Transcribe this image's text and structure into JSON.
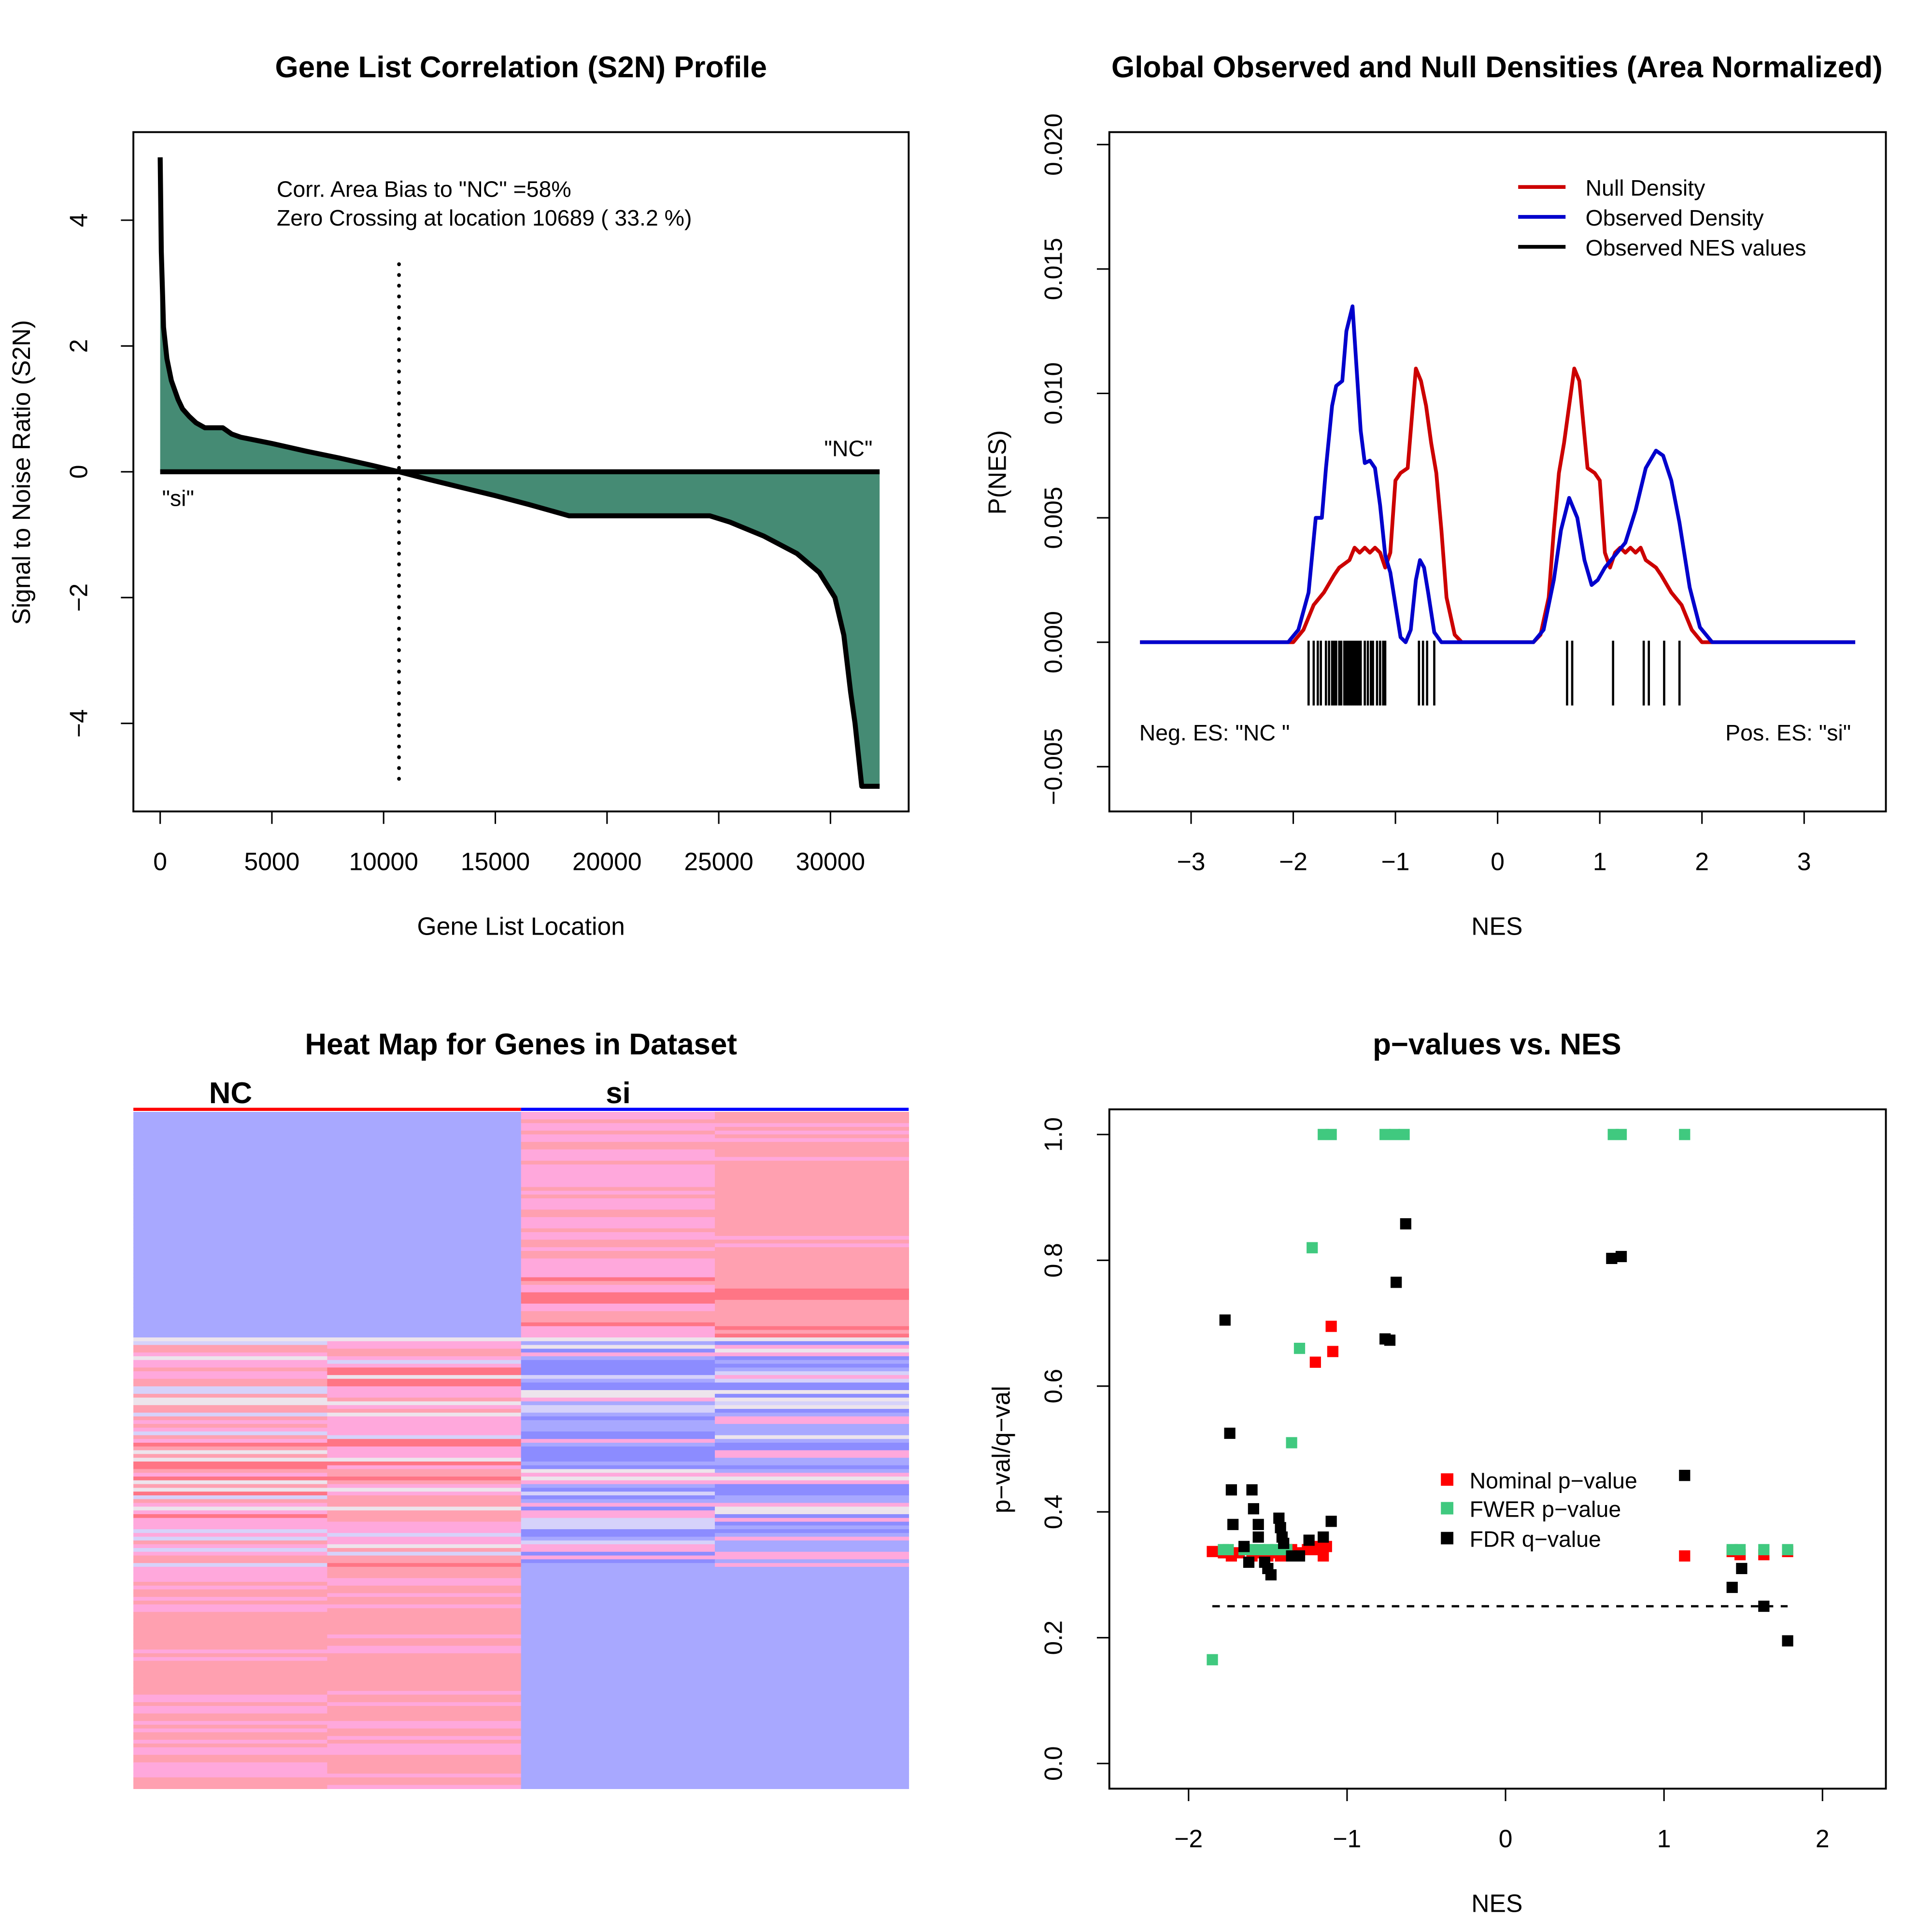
{
  "chart_data": [
    {
      "type": "area",
      "title": "Gene List Correlation (S2N) Profile",
      "xlabel": "Gene List Location",
      "ylabel": "Signal to Noise Ratio (S2N)",
      "xlim": [
        -1200,
        33500
      ],
      "ylim": [
        -5.4,
        5.4
      ],
      "xticks": [
        0,
        5000,
        10000,
        15000,
        20000,
        25000,
        30000
      ],
      "yticks": [
        -4,
        -2,
        0,
        2,
        4
      ],
      "fill_color": "#458b74",
      "x": [
        0,
        50,
        150,
        300,
        500,
        800,
        1000,
        1300,
        1600,
        2000,
        2800,
        3200,
        3600,
        5000,
        6500,
        8000,
        9500,
        10689,
        12000,
        13500,
        15000,
        16500,
        18300,
        24600,
        25500,
        27000,
        28500,
        29500,
        30200,
        30600,
        30900,
        31100,
        31400,
        32200
      ],
      "y": [
        5.0,
        3.5,
        2.3,
        1.8,
        1.45,
        1.15,
        1.0,
        0.88,
        0.78,
        0.7,
        0.7,
        0.6,
        0.55,
        0.45,
        0.33,
        0.22,
        0.1,
        0.0,
        -0.12,
        -0.25,
        -0.38,
        -0.52,
        -0.7,
        -0.7,
        -0.8,
        -1.02,
        -1.3,
        -1.6,
        -2.0,
        -2.6,
        -3.5,
        -4.0,
        -5.0,
        -5.0
      ],
      "zero_crossing": 10689,
      "annotations": [
        "Corr. Area Bias to \"NC\" =58%",
        "Zero Crossing at location  10689  ( 33.2  %)"
      ],
      "label_left": "\"si\"",
      "label_right": "\"NC\""
    },
    {
      "type": "line",
      "title": "Global Observed and Null Densities (Area Normalized)",
      "xlabel": "NES",
      "ylabel": "P(NES)",
      "xlim": [
        -3.8,
        3.8
      ],
      "ylim": [
        -0.0068,
        0.0205
      ],
      "xticks": [
        -3,
        -2,
        -1,
        0,
        1,
        2,
        3
      ],
      "yticks": [
        -0.005,
        0.0,
        0.005,
        0.01,
        0.015,
        0.02
      ],
      "ytick_labels": [
        "−0.005",
        "0.000",
        "0.005",
        "0.010",
        "0.015",
        "0.020"
      ],
      "xtick_labels": [
        "−3",
        "−2",
        "−1",
        "0",
        "1",
        "2",
        "3"
      ],
      "legend": {
        "placement": "top-right",
        "entries": [
          "Null Density",
          "Observed Density",
          "Observed NES values"
        ]
      },
      "series": [
        {
          "name": "Null Density",
          "color": "#cc0000",
          "x": [
            -3.5,
            -2.0,
            -1.9,
            -1.8,
            -1.7,
            -1.6,
            -1.55,
            -1.45,
            -1.4,
            -1.35,
            -1.3,
            -1.25,
            -1.2,
            -1.15,
            -1.1,
            -1.05,
            -1.0,
            -0.95,
            -0.88,
            -0.8,
            -0.75,
            -0.7,
            -0.65,
            -0.6,
            -0.55,
            -0.5,
            -0.42,
            -0.35,
            0.35,
            0.42,
            0.5,
            0.55,
            0.6,
            0.65,
            0.7,
            0.75,
            0.8,
            0.88,
            0.95,
            1.0,
            1.05,
            1.1,
            1.15,
            1.2,
            1.25,
            1.3,
            1.35,
            1.4,
            1.45,
            1.55,
            1.6,
            1.7,
            1.8,
            1.9,
            2.0,
            3.5
          ],
          "y": [
            0,
            0,
            0.0005,
            0.0015,
            0.002,
            0.0027,
            0.003,
            0.0033,
            0.0038,
            0.0036,
            0.0038,
            0.0036,
            0.0038,
            0.0036,
            0.003,
            0.0036,
            0.0065,
            0.0068,
            0.007,
            0.011,
            0.0105,
            0.0095,
            0.008,
            0.0068,
            0.0045,
            0.0018,
            0.0003,
            0,
            0,
            0.0003,
            0.0018,
            0.0045,
            0.0068,
            0.008,
            0.0095,
            0.011,
            0.0105,
            0.007,
            0.0068,
            0.0065,
            0.0036,
            0.003,
            0.0036,
            0.0038,
            0.0036,
            0.0038,
            0.0036,
            0.0038,
            0.0033,
            0.003,
            0.0027,
            0.002,
            0.0015,
            0.0005,
            0,
            0
          ]
        },
        {
          "name": "Observed Density",
          "color": "#0000cc",
          "x": [
            -3.5,
            -2.05,
            -1.95,
            -1.85,
            -1.78,
            -1.72,
            -1.68,
            -1.62,
            -1.58,
            -1.52,
            -1.48,
            -1.42,
            -1.38,
            -1.34,
            -1.3,
            -1.25,
            -1.2,
            -1.15,
            -1.1,
            -1.05,
            -1.0,
            -0.95,
            -0.9,
            -0.85,
            -0.8,
            -0.76,
            -0.72,
            -0.68,
            -0.62,
            -0.55,
            0.35,
            0.45,
            0.55,
            0.62,
            0.7,
            0.78,
            0.85,
            0.92,
            0.98,
            1.05,
            1.15,
            1.25,
            1.35,
            1.45,
            1.55,
            1.62,
            1.7,
            1.78,
            1.88,
            1.98,
            2.1,
            3.5
          ],
          "y": [
            0,
            0,
            0.0005,
            0.002,
            0.005,
            0.005,
            0.007,
            0.0095,
            0.0103,
            0.0105,
            0.0125,
            0.0135,
            0.011,
            0.0085,
            0.0072,
            0.0073,
            0.007,
            0.0055,
            0.0035,
            0.0028,
            0.0015,
            0.0002,
            0,
            0.0005,
            0.0025,
            0.0033,
            0.003,
            0.002,
            0.0004,
            0,
            0,
            0.0005,
            0.0025,
            0.0045,
            0.0058,
            0.005,
            0.0033,
            0.0023,
            0.0025,
            0.003,
            0.0035,
            0.004,
            0.0053,
            0.007,
            0.0077,
            0.0075,
            0.0065,
            0.0048,
            0.0022,
            0.0006,
            0,
            0
          ]
        }
      ],
      "rug_values": [
        -1.85,
        -1.8,
        -1.76,
        -1.73,
        -1.68,
        -1.65,
        -1.62,
        -1.6,
        -1.58,
        -1.55,
        -1.53,
        -1.5,
        -1.48,
        -1.46,
        -1.44,
        -1.42,
        -1.4,
        -1.38,
        -1.36,
        -1.34,
        -1.3,
        -1.27,
        -1.24,
        -1.22,
        -1.18,
        -1.15,
        -1.12,
        -1.1,
        -0.77,
        -0.73,
        -0.69,
        -0.62,
        0.68,
        0.73,
        1.13,
        1.43,
        1.48,
        1.63,
        1.78
      ],
      "neg_label": "Neg. ES: \"NC \"",
      "pos_label": "Pos. ES: \"si\""
    },
    {
      "type": "heatmap",
      "title": "Heat Map for Genes in Dataset",
      "groups": [
        {
          "name": "NC",
          "color": "#ff0000"
        },
        {
          "name": "si",
          "color": "#0000ff"
        }
      ],
      "palette": {
        "blue": "#a8a8ff",
        "deep_blue": "#8c8cff",
        "pale": "#ede4ec",
        "lavender": "#d6d2fa",
        "pink": "#ffa8dc",
        "salmon": "#ffa0b0",
        "red": "#ff7585"
      }
    },
    {
      "type": "scatter",
      "title": "p−values vs. NES",
      "xlabel": "NES",
      "ylabel": "p−val/q−val",
      "xlim": [
        -2.5,
        2.4
      ],
      "ylim": [
        -0.04,
        1.04
      ],
      "xticks": [
        -2,
        -1,
        0,
        1,
        2
      ],
      "xtick_labels": [
        "−2",
        "−1",
        "0",
        "1",
        "2"
      ],
      "yticks": [
        0.0,
        0.2,
        0.4,
        0.6,
        0.8,
        1.0
      ],
      "ytick_labels": [
        "0.0",
        "0.2",
        "0.4",
        "0.6",
        "0.8",
        "1.0"
      ],
      "threshold": 0.25,
      "threshold_range": [
        -1.85,
        1.78
      ],
      "legend": {
        "placement": "center-right",
        "entries": [
          "Nominal p−value",
          "FWER p−value",
          "FDR q−value"
        ]
      },
      "series": [
        {
          "name": "Nominal p−value",
          "color": "#ff0000",
          "x": [
            -1.85,
            -1.78,
            -1.73,
            -1.68,
            -1.6,
            -1.55,
            -1.5,
            -1.45,
            -1.42,
            -1.38,
            -1.35,
            -1.3,
            -1.25,
            -1.2,
            -1.17,
            -1.15,
            -1.13,
            -1.2,
            -1.1,
            -1.09,
            1.13,
            1.43,
            1.48,
            1.63,
            1.78
          ],
          "y": [
            0.337,
            0.335,
            0.33,
            0.335,
            0.33,
            0.335,
            0.33,
            0.335,
            0.33,
            0.34,
            0.34,
            0.335,
            0.34,
            0.34,
            0.345,
            0.33,
            0.345,
            0.638,
            0.695,
            0.655,
            0.33,
            0.337,
            0.332,
            0.332,
            0.337
          ]
        },
        {
          "name": "FWER p−value",
          "color": "#40c97f",
          "x": [
            -1.85,
            -1.78,
            -1.75,
            -1.65,
            -1.6,
            -1.55,
            -1.5,
            -1.45,
            -1.4,
            -1.38,
            -1.35,
            -1.3,
            -1.22,
            -1.15,
            -1.1,
            -0.76,
            -0.7,
            -0.64,
            0.68,
            0.73,
            1.13,
            1.43,
            1.48,
            1.63,
            1.78
          ],
          "y": [
            0.165,
            0.34,
            0.34,
            0.34,
            0.34,
            0.34,
            0.34,
            0.34,
            0.34,
            0.34,
            0.51,
            0.66,
            0.82,
            1.0,
            1.0,
            1.0,
            1.0,
            1.0,
            1.0,
            1.0,
            1.0,
            0.34,
            0.34,
            0.34,
            0.34
          ]
        },
        {
          "name": "FDR q−value",
          "color": "#000000",
          "x": [
            -1.77,
            -1.74,
            -1.73,
            -1.72,
            -1.6,
            -1.59,
            -1.56,
            -1.56,
            -1.65,
            -1.62,
            -1.52,
            -1.5,
            -1.48,
            -1.43,
            -1.42,
            -1.41,
            -1.4,
            -1.35,
            -1.3,
            -1.24,
            -1.15,
            -1.1,
            -0.76,
            -0.73,
            -0.69,
            -0.63,
            0.67,
            0.73,
            1.13,
            1.43,
            1.49,
            1.63,
            1.78
          ],
          "y": [
            0.705,
            0.525,
            0.435,
            0.38,
            0.435,
            0.405,
            0.38,
            0.36,
            0.345,
            0.32,
            0.32,
            0.31,
            0.3,
            0.39,
            0.375,
            0.36,
            0.35,
            0.33,
            0.33,
            0.355,
            0.36,
            0.385,
            0.675,
            0.673,
            0.765,
            0.858,
            0.803,
            0.806,
            0.458,
            0.28,
            0.31,
            0.25,
            0.195
          ]
        }
      ]
    }
  ]
}
